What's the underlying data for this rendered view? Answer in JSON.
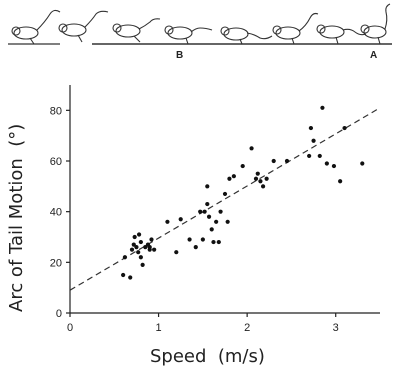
{
  "illustration": {
    "description_icon": "jerboa-hopping-sequence",
    "labels": [
      "B",
      "A"
    ]
  },
  "chart_data": {
    "type": "scatter",
    "title": "",
    "xlabel": "Speed  (m/s)",
    "ylabel": "Arc of Tail Motion  (°)",
    "xlim": [
      0,
      3.5
    ],
    "ylim": [
      0,
      90
    ],
    "xticks": [
      "0",
      "1",
      "2",
      "3"
    ],
    "yticks": [
      "0",
      "20",
      "40",
      "60",
      "80"
    ],
    "grid": false,
    "legend": "none",
    "points": [
      [
        0.6,
        15
      ],
      [
        0.68,
        14
      ],
      [
        0.62,
        22
      ],
      [
        0.7,
        25
      ],
      [
        0.72,
        27
      ],
      [
        0.73,
        30
      ],
      [
        0.75,
        26
      ],
      [
        0.77,
        24
      ],
      [
        0.78,
        31
      ],
      [
        0.8,
        22
      ],
      [
        0.8,
        28
      ],
      [
        0.82,
        19
      ],
      [
        0.85,
        26
      ],
      [
        0.88,
        27
      ],
      [
        0.9,
        25
      ],
      [
        0.92,
        29
      ],
      [
        0.95,
        25
      ],
      [
        0.9,
        26
      ],
      [
        1.1,
        36
      ],
      [
        1.2,
        24
      ],
      [
        1.25,
        37
      ],
      [
        1.35,
        29
      ],
      [
        1.42,
        26
      ],
      [
        1.47,
        40
      ],
      [
        1.5,
        29
      ],
      [
        1.52,
        40
      ],
      [
        1.55,
        43
      ],
      [
        1.55,
        50
      ],
      [
        1.57,
        38
      ],
      [
        1.6,
        33
      ],
      [
        1.62,
        28
      ],
      [
        1.65,
        36
      ],
      [
        1.68,
        28
      ],
      [
        1.7,
        40
      ],
      [
        1.75,
        47
      ],
      [
        1.78,
        36
      ],
      [
        1.8,
        53
      ],
      [
        1.85,
        54
      ],
      [
        1.95,
        58
      ],
      [
        2.05,
        65
      ],
      [
        2.1,
        53
      ],
      [
        2.12,
        55
      ],
      [
        2.15,
        52
      ],
      [
        2.18,
        50
      ],
      [
        2.22,
        53
      ],
      [
        2.3,
        60
      ],
      [
        2.45,
        60
      ],
      [
        2.7,
        62
      ],
      [
        2.72,
        73
      ],
      [
        2.75,
        68
      ],
      [
        2.82,
        62
      ],
      [
        2.85,
        81
      ],
      [
        2.9,
        59
      ],
      [
        2.98,
        58
      ],
      [
        3.05,
        52
      ],
      [
        3.1,
        73
      ],
      [
        3.3,
        59
      ]
    ],
    "trendline": {
      "style": "dashed",
      "from": [
        0,
        9
      ],
      "to": [
        3.5,
        81
      ]
    }
  }
}
